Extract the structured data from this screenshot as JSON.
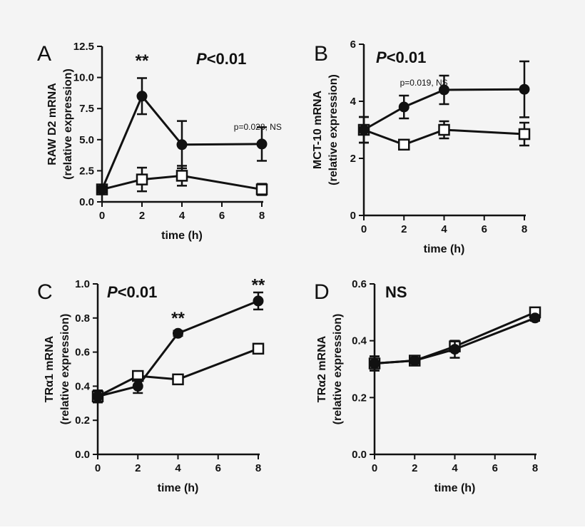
{
  "figure": {
    "background": "#f4f4f4",
    "ink": "#111111"
  },
  "chart_data": [
    {
      "panel": "A",
      "type": "line",
      "xlabel": "time (h)",
      "ylabel_line1": "RAW D2 mRNA",
      "ylabel_line2": "(relative expression)",
      "x_ticks": [
        "0",
        "2",
        "4",
        "6",
        "8"
      ],
      "xlim": [
        0,
        8
      ],
      "y_ticks": [
        "0.0",
        "2.5",
        "5.0",
        "7.5",
        "10.0",
        "12.5"
      ],
      "ylim": [
        0,
        12.5
      ],
      "stat": "P<0.01",
      "series": [
        {
          "name": "filled circles",
          "marker": "circle",
          "x": [
            0,
            2,
            4,
            8
          ],
          "y": [
            1.0,
            8.5,
            4.6,
            4.65
          ],
          "err": [
            0.25,
            1.45,
            1.9,
            1.35
          ]
        },
        {
          "name": "open squares",
          "marker": "square",
          "x": [
            0,
            2,
            4,
            8
          ],
          "y": [
            1.0,
            1.8,
            2.1,
            1.0
          ],
          "err": [
            0.25,
            0.95,
            0.8,
            0.45
          ]
        }
      ],
      "annotations": [
        {
          "text": "**",
          "x": 2,
          "y": 10.9,
          "style": "stars"
        },
        {
          "text": "p=0.028, NS",
          "x": 6.6,
          "y": 5.8,
          "style": "small"
        }
      ]
    },
    {
      "panel": "B",
      "type": "line",
      "xlabel": "time (h)",
      "ylabel_line1": "MCT-10 mRNA",
      "ylabel_line2": "(relative expression)",
      "x_ticks": [
        "0",
        "2",
        "4",
        "6",
        "8"
      ],
      "xlim": [
        0,
        8
      ],
      "y_ticks": [
        "0",
        "2",
        "4",
        "6"
      ],
      "ylim": [
        0,
        6
      ],
      "stat": "P<0.01",
      "series": [
        {
          "name": "filled circles",
          "marker": "circle",
          "x": [
            0,
            2,
            4,
            8
          ],
          "y": [
            3.0,
            3.8,
            4.4,
            4.42
          ],
          "err": [
            0.45,
            0.4,
            0.5,
            0.98
          ]
        },
        {
          "name": "open squares",
          "marker": "square",
          "x": [
            0,
            2,
            4,
            8
          ],
          "y": [
            3.0,
            2.48,
            3.0,
            2.85
          ],
          "err": [
            0.45,
            0.15,
            0.3,
            0.4
          ]
        }
      ],
      "annotations": [
        {
          "text": "p=0.019, NS",
          "x": 1.8,
          "y": 4.55,
          "style": "small"
        }
      ]
    },
    {
      "panel": "C",
      "type": "line",
      "xlabel": "time (h)",
      "ylabel_line1": "TRα1 mRNA",
      "ylabel_line2": "(relative expression)",
      "x_ticks": [
        "0",
        "2",
        "4",
        "6",
        "8"
      ],
      "xlim": [
        0,
        8
      ],
      "y_ticks": [
        "0.0",
        "0.2",
        "0.4",
        "0.6",
        "0.8",
        "1.0"
      ],
      "ylim": [
        0,
        1.0
      ],
      "stat": "P<0.01",
      "series": [
        {
          "name": "filled circles",
          "marker": "circle",
          "x": [
            0,
            2,
            4,
            8
          ],
          "y": [
            0.34,
            0.4,
            0.71,
            0.9
          ],
          "err": [
            0.035,
            0.04,
            0.015,
            0.05
          ]
        },
        {
          "name": "open squares",
          "marker": "square",
          "x": [
            0,
            2,
            4,
            8
          ],
          "y": [
            0.34,
            0.46,
            0.44,
            0.62
          ],
          "err": [
            0.035,
            0.01,
            0.01,
            0.01
          ]
        }
      ],
      "annotations": [
        {
          "text": "**",
          "x": 4,
          "y": 0.765,
          "style": "stars"
        },
        {
          "text": "**",
          "x": 8,
          "y": 0.96,
          "style": "stars"
        }
      ]
    },
    {
      "panel": "D",
      "type": "line",
      "xlabel": "time (h)",
      "ylabel_line1": "TRα2 mRNA",
      "ylabel_line2": "(relative expression)",
      "x_ticks": [
        "0",
        "2",
        "4",
        "6",
        "8"
      ],
      "xlim": [
        0,
        8
      ],
      "y_ticks": [
        "0.0",
        "0.2",
        "0.4",
        "0.6"
      ],
      "ylim": [
        0,
        0.6
      ],
      "stat": "NS",
      "series": [
        {
          "name": "filled circles",
          "marker": "circle",
          "x": [
            0,
            2,
            4,
            8
          ],
          "y": [
            0.32,
            0.33,
            0.37,
            0.48
          ],
          "err": [
            0.025,
            0.01,
            0.03,
            0.01
          ]
        },
        {
          "name": "open squares",
          "marker": "square",
          "x": [
            0,
            2,
            4,
            8
          ],
          "y": [
            0.32,
            0.33,
            0.38,
            0.5
          ],
          "err": [
            0.025,
            0.01,
            0.01,
            0.005
          ]
        }
      ],
      "annotations": []
    }
  ]
}
